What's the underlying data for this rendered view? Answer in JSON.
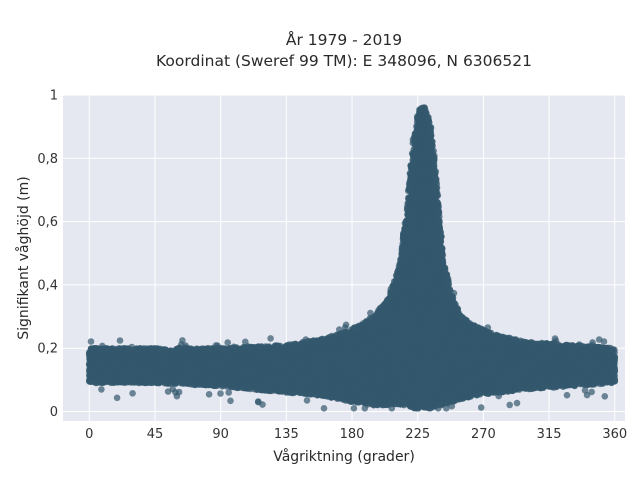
{
  "chart_data": {
    "type": "scatter",
    "title": "År 1979 - 2019",
    "subtitle": "Koordinat (Sweref 99 TM): E 348096, N 6306521",
    "xlabel": "Vågriktning (grader)",
    "ylabel": "Signifikant våghöjd (m)",
    "xlim": [
      -18,
      367
    ],
    "ylim": [
      -0.03,
      1.0
    ],
    "x_ticks": [
      0,
      45,
      90,
      135,
      180,
      225,
      270,
      315,
      360
    ],
    "y_ticks": [
      0,
      0.2,
      0.4,
      0.6,
      0.8,
      1
    ],
    "x_tick_labels": [
      "0",
      "45",
      "90",
      "135",
      "180",
      "225",
      "270",
      "315",
      "360"
    ],
    "y_tick_labels": [
      "0",
      "0,2",
      "0,4",
      "0,6",
      "0,8",
      "1"
    ],
    "grid": true,
    "marker_color": "#34586e",
    "background_color": "#e5e8f0",
    "envelope": {
      "direction": [
        0,
        45,
        90,
        135,
        160,
        180,
        195,
        205,
        212,
        218,
        222,
        226,
        230,
        234,
        238,
        242,
        248,
        255,
        265,
        280,
        300,
        330,
        360
      ],
      "lower": [
        0.09,
        0.09,
        0.08,
        0.06,
        0.05,
        0.03,
        0.02,
        0.02,
        0.02,
        0.02,
        0.01,
        0.01,
        0.01,
        0.01,
        0.02,
        0.02,
        0.03,
        0.04,
        0.05,
        0.06,
        0.07,
        0.08,
        0.09
      ],
      "upper": [
        0.2,
        0.2,
        0.2,
        0.21,
        0.23,
        0.26,
        0.3,
        0.36,
        0.45,
        0.65,
        0.86,
        0.96,
        0.96,
        0.9,
        0.72,
        0.5,
        0.37,
        0.3,
        0.27,
        0.24,
        0.22,
        0.21,
        0.2
      ]
    }
  }
}
